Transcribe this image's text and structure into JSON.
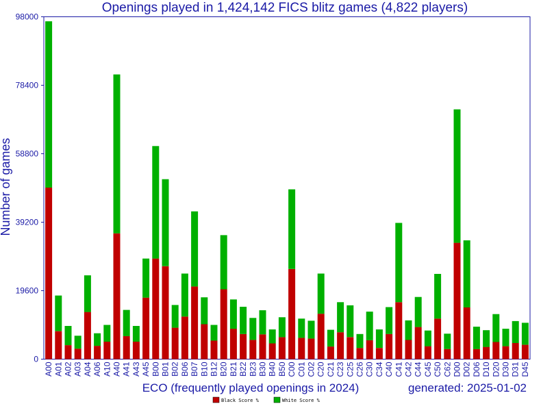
{
  "chart_data": {
    "type": "bar",
    "stacked": true,
    "title": "Openings played in 1,424,142 FICS blitz games (4,822 players)",
    "xlabel": "ECO (frequently played openings in 2024)",
    "ylabel": "Number of games",
    "generated": "generated: 2025-01-02",
    "ylim": [
      0,
      98000
    ],
    "yticks": [
      0,
      19600,
      39200,
      58800,
      78400,
      98000
    ],
    "grid": false,
    "legend_position": "bottom-center",
    "categories": [
      "A00",
      "A01",
      "A02",
      "A03",
      "A04",
      "A06",
      "A10",
      "A40",
      "A41",
      "A43",
      "A45",
      "B00",
      "B01",
      "B02",
      "B06",
      "B07",
      "B10",
      "B12",
      "B20",
      "B21",
      "B22",
      "B23",
      "B30",
      "B40",
      "B50",
      "C00",
      "C01",
      "C02",
      "C20",
      "C21",
      "C23",
      "C25",
      "C26",
      "C30",
      "C34",
      "C40",
      "C41",
      "C42",
      "C44",
      "C45",
      "C50",
      "C62",
      "D00",
      "D02",
      "D06",
      "D10",
      "D20",
      "D30",
      "D31",
      "D45"
    ],
    "series": [
      {
        "name": "Black Score %",
        "color": "#c00000",
        "values": [
          49100,
          8000,
          4000,
          3000,
          13500,
          3800,
          5000,
          36000,
          6600,
          5000,
          17600,
          28800,
          26600,
          9000,
          12200,
          20800,
          10000,
          5300,
          20000,
          8700,
          7200,
          5500,
          7100,
          4500,
          6300,
          25800,
          6100,
          5900,
          13000,
          3600,
          7700,
          6300,
          3200,
          5400,
          3200,
          7200,
          16300,
          5500,
          9200,
          3700,
          11600,
          2900,
          33300,
          14800,
          2900,
          3500,
          4900,
          3700,
          4600,
          4100
        ]
      },
      {
        "name": "White Score %",
        "color": "#00b000",
        "values": [
          47600,
          10200,
          5500,
          3700,
          10500,
          3600,
          4800,
          45500,
          7500,
          4500,
          11200,
          32200,
          24900,
          6500,
          12300,
          21500,
          7700,
          4500,
          15500,
          8400,
          7800,
          6300,
          6900,
          4000,
          5700,
          22800,
          5500,
          5100,
          11500,
          4800,
          8600,
          9100,
          4000,
          8200,
          5300,
          7700,
          22700,
          5600,
          8600,
          4500,
          12800,
          4400,
          38200,
          19200,
          6400,
          4800,
          8000,
          5000,
          6300,
          6300
        ]
      }
    ]
  }
}
